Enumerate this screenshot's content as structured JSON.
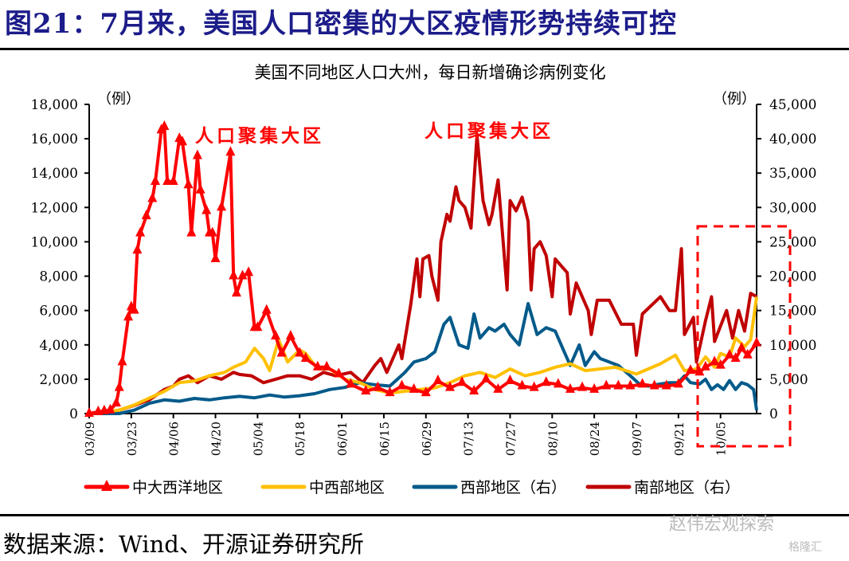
{
  "page_title": "图21：7月来，美国人口密集的大区疫情形势持续可控",
  "source": "数据来源：Wind、开源证券研究所",
  "watermarks": [
    "赵伟宏观探索",
    "格隆汇"
  ],
  "chart_data": {
    "type": "line",
    "title": "美国不同地区人口大州，每日新增确诊病例变化",
    "x_unit": "days since 03/09",
    "x_range": [
      0,
      222
    ],
    "x_ticks": [
      {
        "day": 0,
        "label": "03/09"
      },
      {
        "day": 14,
        "label": "03/23"
      },
      {
        "day": 28,
        "label": "04/06"
      },
      {
        "day": 42,
        "label": "04/20"
      },
      {
        "day": 56,
        "label": "05/04"
      },
      {
        "day": 70,
        "label": "05/18"
      },
      {
        "day": 84,
        "label": "06/01"
      },
      {
        "day": 98,
        "label": "06/15"
      },
      {
        "day": 112,
        "label": "06/29"
      },
      {
        "day": 126,
        "label": "07/13"
      },
      {
        "day": 140,
        "label": "07/27"
      },
      {
        "day": 154,
        "label": "08/10"
      },
      {
        "day": 168,
        "label": "08/24"
      },
      {
        "day": 182,
        "label": "09/07"
      },
      {
        "day": 196,
        "label": "09/21"
      },
      {
        "day": 210,
        "label": "10/05"
      }
    ],
    "y_left": {
      "unit": "（例）",
      "range": [
        0,
        18000
      ],
      "ticks": [
        "0",
        "2,000",
        "4,000",
        "6,000",
        "8,000",
        "10,000",
        "12,000",
        "14,000",
        "16,000",
        "18,000"
      ]
    },
    "y_right": {
      "unit": "（例）",
      "range": [
        0,
        45000
      ],
      "ticks": [
        "0",
        "5,000",
        "10,000",
        "15,000",
        "20,000",
        "25,000",
        "30,000",
        "35,000",
        "40,000",
        "45,000"
      ]
    },
    "annotations": [
      "人口聚集大区",
      "人口聚集大区"
    ],
    "legend_position": "bottom",
    "series": [
      {
        "name": "中大西洋地区",
        "axis": "left",
        "color": "#ff0000",
        "marker": "triangle",
        "points": [
          [
            0,
            0
          ],
          [
            3,
            100
          ],
          [
            5,
            150
          ],
          [
            7,
            200
          ],
          [
            9,
            600
          ],
          [
            10,
            1500
          ],
          [
            11,
            3000
          ],
          [
            13,
            5600
          ],
          [
            14,
            6200
          ],
          [
            15,
            6000
          ],
          [
            16,
            9500
          ],
          [
            17,
            10500
          ],
          [
            19,
            11500
          ],
          [
            21,
            12500
          ],
          [
            22,
            13500
          ],
          [
            24,
            16500
          ],
          [
            25,
            16700
          ],
          [
            26,
            13500
          ],
          [
            28,
            13500
          ],
          [
            30,
            16000
          ],
          [
            31,
            15800
          ],
          [
            33,
            13300
          ],
          [
            34,
            10500
          ],
          [
            36,
            15000
          ],
          [
            37,
            13000
          ],
          [
            39,
            11800
          ],
          [
            40,
            10500
          ],
          [
            41,
            10500
          ],
          [
            42,
            9000
          ],
          [
            44,
            12000
          ],
          [
            47,
            15200
          ],
          [
            48,
            8000
          ],
          [
            49,
            7000
          ],
          [
            51,
            8000
          ],
          [
            53,
            8200
          ],
          [
            55,
            5000
          ],
          [
            56,
            5000
          ],
          [
            59,
            6000
          ],
          [
            62,
            4500
          ],
          [
            64,
            3500
          ],
          [
            67,
            4500
          ],
          [
            70,
            3500
          ],
          [
            72,
            3200
          ],
          [
            76,
            2700
          ],
          [
            79,
            2700
          ],
          [
            83,
            2300
          ],
          [
            87,
            1700
          ],
          [
            92,
            1300
          ],
          [
            96,
            1500
          ],
          [
            100,
            1200
          ],
          [
            104,
            1600
          ],
          [
            108,
            1400
          ],
          [
            112,
            1200
          ],
          [
            116,
            1900
          ],
          [
            120,
            1500
          ],
          [
            124,
            1800
          ],
          [
            128,
            1300
          ],
          [
            132,
            2000
          ],
          [
            136,
            1400
          ],
          [
            140,
            1900
          ],
          [
            144,
            1600
          ],
          [
            148,
            1500
          ],
          [
            152,
            1800
          ],
          [
            156,
            1700
          ],
          [
            160,
            1400
          ],
          [
            164,
            1500
          ],
          [
            168,
            1400
          ],
          [
            172,
            1600
          ],
          [
            176,
            1600
          ],
          [
            180,
            1600
          ],
          [
            184,
            1700
          ],
          [
            188,
            1600
          ],
          [
            192,
            1600
          ],
          [
            196,
            1700
          ],
          [
            200,
            2500
          ],
          [
            203,
            2400
          ],
          [
            205,
            2700
          ],
          [
            208,
            3000
          ],
          [
            210,
            2800
          ],
          [
            213,
            3400
          ],
          [
            215,
            3200
          ],
          [
            217,
            3800
          ],
          [
            219,
            3400
          ],
          [
            222,
            4100
          ]
        ]
      },
      {
        "name": "中西部地区",
        "axis": "left",
        "color": "#ffc000",
        "marker": "none",
        "points": [
          [
            0,
            0
          ],
          [
            10,
            200
          ],
          [
            15,
            500
          ],
          [
            20,
            900
          ],
          [
            25,
            1300
          ],
          [
            30,
            1800
          ],
          [
            35,
            1900
          ],
          [
            40,
            2200
          ],
          [
            45,
            2400
          ],
          [
            48,
            2700
          ],
          [
            52,
            3000
          ],
          [
            55,
            3800
          ],
          [
            58,
            3200
          ],
          [
            60,
            2500
          ],
          [
            63,
            4300
          ],
          [
            66,
            3000
          ],
          [
            70,
            3700
          ],
          [
            72,
            3500
          ],
          [
            76,
            2600
          ],
          [
            80,
            2600
          ],
          [
            85,
            2000
          ],
          [
            90,
            1800
          ],
          [
            95,
            1400
          ],
          [
            100,
            1200
          ],
          [
            105,
            1300
          ],
          [
            110,
            1400
          ],
          [
            115,
            1500
          ],
          [
            120,
            1800
          ],
          [
            125,
            2200
          ],
          [
            130,
            2400
          ],
          [
            135,
            2100
          ],
          [
            140,
            2600
          ],
          [
            145,
            2200
          ],
          [
            150,
            2400
          ],
          [
            155,
            2700
          ],
          [
            160,
            2900
          ],
          [
            165,
            2500
          ],
          [
            170,
            2600
          ],
          [
            175,
            2700
          ],
          [
            182,
            2300
          ],
          [
            190,
            2900
          ],
          [
            195,
            3400
          ],
          [
            198,
            2500
          ],
          [
            202,
            2600
          ],
          [
            205,
            3300
          ],
          [
            208,
            2700
          ],
          [
            210,
            3500
          ],
          [
            213,
            3300
          ],
          [
            215,
            4400
          ],
          [
            218,
            3900
          ],
          [
            220,
            4300
          ],
          [
            222,
            6800
          ]
        ]
      },
      {
        "name": "西部地区（右）",
        "axis": "right",
        "color": "#005a8a",
        "marker": "none",
        "points": [
          [
            0,
            0
          ],
          [
            10,
            0
          ],
          [
            15,
            500
          ],
          [
            20,
            1500
          ],
          [
            25,
            2000
          ],
          [
            30,
            1800
          ],
          [
            35,
            2200
          ],
          [
            40,
            2000
          ],
          [
            45,
            2300
          ],
          [
            50,
            2500
          ],
          [
            55,
            2300
          ],
          [
            60,
            2700
          ],
          [
            65,
            2400
          ],
          [
            70,
            2600
          ],
          [
            75,
            2900
          ],
          [
            80,
            3500
          ],
          [
            85,
            3800
          ],
          [
            90,
            4500
          ],
          [
            95,
            4200
          ],
          [
            100,
            4000
          ],
          [
            105,
            6000
          ],
          [
            108,
            7500
          ],
          [
            112,
            8000
          ],
          [
            115,
            9000
          ],
          [
            118,
            13000
          ],
          [
            120,
            14000
          ],
          [
            123,
            10000
          ],
          [
            126,
            9500
          ],
          [
            128,
            14500
          ],
          [
            130,
            11000
          ],
          [
            133,
            12500
          ],
          [
            135,
            12000
          ],
          [
            138,
            13000
          ],
          [
            140,
            11500
          ],
          [
            143,
            10000
          ],
          [
            146,
            16000
          ],
          [
            149,
            11500
          ],
          [
            152,
            12500
          ],
          [
            155,
            12000
          ],
          [
            158,
            9000
          ],
          [
            160,
            7000
          ],
          [
            163,
            10000
          ],
          [
            165,
            7000
          ],
          [
            168,
            9000
          ],
          [
            170,
            8000
          ],
          [
            173,
            7500
          ],
          [
            176,
            7000
          ],
          [
            180,
            5500
          ],
          [
            183,
            4300
          ],
          [
            186,
            4000
          ],
          [
            190,
            4300
          ],
          [
            193,
            4500
          ],
          [
            196,
            4500
          ],
          [
            198,
            5500
          ],
          [
            200,
            4500
          ],
          [
            203,
            4300
          ],
          [
            205,
            5000
          ],
          [
            207,
            3500
          ],
          [
            209,
            4200
          ],
          [
            211,
            3500
          ],
          [
            213,
            4800
          ],
          [
            215,
            3500
          ],
          [
            217,
            4500
          ],
          [
            219,
            4200
          ],
          [
            221,
            3500
          ],
          [
            222,
            500
          ]
        ]
      },
      {
        "name": "南部地区（右）",
        "axis": "right",
        "color": "#c00000",
        "marker": "none",
        "points": [
          [
            0,
            0
          ],
          [
            5,
            200
          ],
          [
            10,
            500
          ],
          [
            15,
            1200
          ],
          [
            20,
            2000
          ],
          [
            25,
            3500
          ],
          [
            28,
            4000
          ],
          [
            30,
            5000
          ],
          [
            33,
            5500
          ],
          [
            36,
            4500
          ],
          [
            40,
            5500
          ],
          [
            44,
            5000
          ],
          [
            48,
            6000
          ],
          [
            50,
            5700
          ],
          [
            54,
            5500
          ],
          [
            58,
            4500
          ],
          [
            62,
            5000
          ],
          [
            66,
            5500
          ],
          [
            70,
            5500
          ],
          [
            74,
            5000
          ],
          [
            78,
            6000
          ],
          [
            82,
            5500
          ],
          [
            87,
            6000
          ],
          [
            91,
            4500
          ],
          [
            95,
            7000
          ],
          [
            97,
            8000
          ],
          [
            99,
            6000
          ],
          [
            103,
            10000
          ],
          [
            104,
            8000
          ],
          [
            107,
            16000
          ],
          [
            109,
            22500
          ],
          [
            110,
            17000
          ],
          [
            111,
            22500
          ],
          [
            113,
            23000
          ],
          [
            114,
            20000
          ],
          [
            116,
            16500
          ],
          [
            117,
            25000
          ],
          [
            119,
            29000
          ],
          [
            120,
            28000
          ],
          [
            122,
            33000
          ],
          [
            123,
            31000
          ],
          [
            125,
            30000
          ],
          [
            127,
            27000
          ],
          [
            129,
            40500
          ],
          [
            131,
            31000
          ],
          [
            133,
            27500
          ],
          [
            134,
            29000
          ],
          [
            136,
            34000
          ],
          [
            139,
            18000
          ],
          [
            140,
            31000
          ],
          [
            142,
            29500
          ],
          [
            144,
            31500
          ],
          [
            146,
            28000
          ],
          [
            147,
            18000
          ],
          [
            148,
            24000
          ],
          [
            150,
            25000
          ],
          [
            152,
            23000
          ],
          [
            154,
            17000
          ],
          [
            155,
            22500
          ],
          [
            157,
            21500
          ],
          [
            159,
            20500
          ],
          [
            160,
            14500
          ],
          [
            162,
            19000
          ],
          [
            166,
            15000
          ],
          [
            167,
            11500
          ],
          [
            169,
            16500
          ],
          [
            173,
            16500
          ],
          [
            177,
            13000
          ],
          [
            181,
            13000
          ],
          [
            182,
            8500
          ],
          [
            184,
            14500
          ],
          [
            190,
            17000
          ],
          [
            193,
            15000
          ],
          [
            195,
            15000
          ],
          [
            197,
            24000
          ],
          [
            198,
            11500
          ],
          [
            201,
            14000
          ],
          [
            202,
            7500
          ],
          [
            205,
            13500
          ],
          [
            207,
            17000
          ],
          [
            208,
            10500
          ],
          [
            212,
            15000
          ],
          [
            214,
            11000
          ],
          [
            216,
            15000
          ],
          [
            218,
            12000
          ],
          [
            220,
            17500
          ],
          [
            222,
            17000
          ]
        ]
      }
    ]
  }
}
